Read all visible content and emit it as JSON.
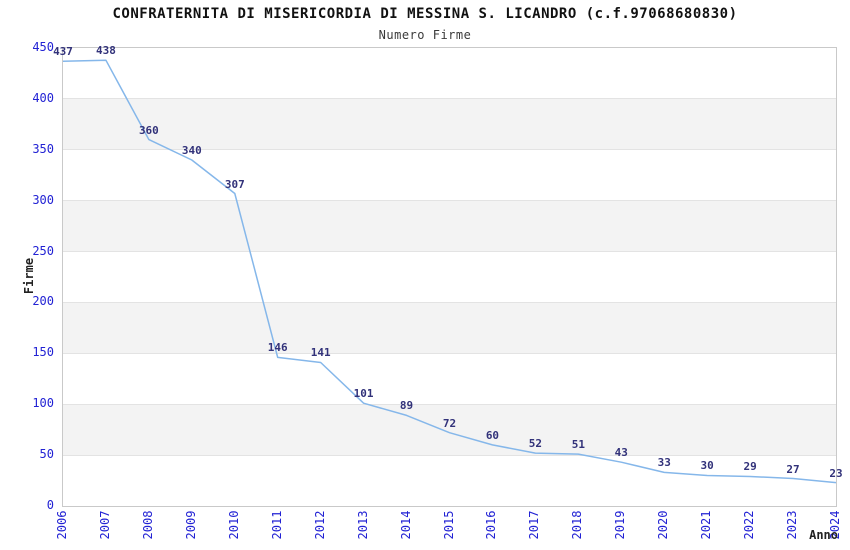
{
  "chart_data": {
    "type": "line",
    "title": "CONFRATERNITA DI MISERICORDIA DI MESSINA S. LICANDRO (c.f.97068680830)",
    "subtitle": "Numero Firme",
    "xlabel": "Anno",
    "ylabel": "Firme",
    "categories": [
      "2006",
      "2007",
      "2008",
      "2009",
      "2010",
      "2011",
      "2012",
      "2013",
      "2014",
      "2015",
      "2016",
      "2017",
      "2018",
      "2019",
      "2020",
      "2021",
      "2022",
      "2023",
      "2024"
    ],
    "values": [
      437,
      438,
      360,
      340,
      307,
      146,
      141,
      101,
      89,
      72,
      60,
      52,
      51,
      43,
      33,
      30,
      29,
      27,
      23
    ],
    "ylim": [
      0,
      450
    ],
    "ytick_step": 50,
    "yticks": [
      0,
      50,
      100,
      150,
      200,
      250,
      300,
      350,
      400,
      450
    ],
    "shaded_bands": [
      [
        50,
        100
      ],
      [
        150,
        200
      ],
      [
        250,
        300
      ],
      [
        350,
        400
      ]
    ],
    "grid": "horizontal",
    "legend": "none",
    "data_labels_shown": true,
    "colors": {
      "line": "#85b7ea",
      "tick_label": "#2222d4",
      "value_label": "#32327a",
      "band": "#f3f3f3",
      "grid_line": "#e3e3e3",
      "plot_border": "#c9c9c9",
      "title": "#111111",
      "subtitle": "#3a3a3a",
      "axis_label": "#222222",
      "background": "#ffffff"
    }
  }
}
